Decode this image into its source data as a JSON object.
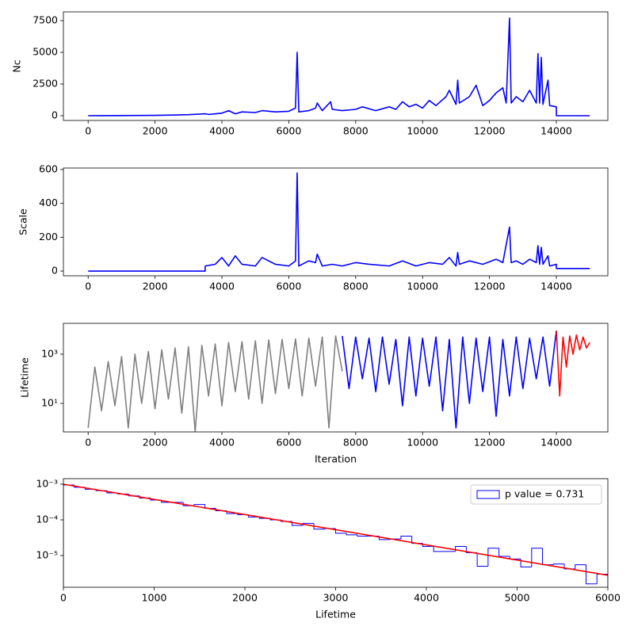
{
  "chart_data": [
    {
      "type": "line",
      "ylabel": "Nc",
      "xlim": [
        -740,
        15540
      ],
      "xticks": [
        0,
        2000,
        4000,
        6000,
        8000,
        10000,
        12000,
        14000
      ],
      "ylim": [
        -375,
        8190
      ],
      "yticks": [
        0,
        2500,
        5000,
        7500
      ],
      "series": [
        {
          "color": "#0000ff",
          "x": [
            0,
            500,
            1000,
            1500,
            2000,
            2500,
            3000,
            3500,
            3600,
            4000,
            4200,
            4400,
            4600,
            5000,
            5200,
            5600,
            6000,
            6200,
            6250,
            6300,
            6600,
            6800,
            6850,
            7000,
            7250,
            7300,
            7600,
            8000,
            8200,
            8600,
            9000,
            9200,
            9400,
            9600,
            9800,
            10000,
            10200,
            10400,
            10700,
            10800,
            11000,
            11050,
            11100,
            11400,
            11600,
            11800,
            12000,
            12200,
            12400,
            12500,
            12600,
            12650,
            12800,
            13000,
            13200,
            13400,
            13450,
            13500,
            13550,
            13600,
            13750,
            13800,
            14000,
            14001,
            15000
          ],
          "values": [
            0,
            5,
            10,
            20,
            30,
            50,
            80,
            150,
            100,
            200,
            400,
            150,
            300,
            250,
            400,
            300,
            350,
            600,
            5000,
            300,
            400,
            600,
            1000,
            400,
            1100,
            500,
            400,
            500,
            700,
            400,
            700,
            500,
            1100,
            700,
            900,
            600,
            1200,
            800,
            1500,
            2000,
            900,
            2800,
            1000,
            1500,
            2400,
            800,
            1200,
            1800,
            2200,
            1000,
            7700,
            1000,
            1500,
            1100,
            2000,
            1000,
            4900,
            1000,
            4600,
            900,
            2800,
            800,
            700,
            0,
            0
          ]
        }
      ]
    },
    {
      "type": "line",
      "ylabel": "Scale",
      "xlim": [
        -740,
        15540
      ],
      "xticks": [
        0,
        2000,
        4000,
        6000,
        8000,
        10000,
        12000,
        14000
      ],
      "ylim": [
        -28,
        609
      ],
      "yticks": [
        0,
        200,
        400,
        600
      ],
      "series": [
        {
          "color": "#0000ff",
          "x": [
            0,
            3500,
            3501,
            3800,
            4000,
            4200,
            4400,
            4600,
            5000,
            5200,
            5600,
            6000,
            6200,
            6250,
            6300,
            6600,
            6800,
            6850,
            7000,
            7300,
            7600,
            8000,
            8400,
            9000,
            9400,
            9800,
            10200,
            10600,
            10800,
            11000,
            11050,
            11100,
            11400,
            11800,
            12200,
            12400,
            12600,
            12650,
            12800,
            13000,
            13200,
            13400,
            13450,
            13500,
            13550,
            13600,
            13750,
            13800,
            14000,
            14001,
            15000
          ],
          "values": [
            0,
            0,
            30,
            40,
            80,
            30,
            90,
            40,
            30,
            80,
            40,
            30,
            60,
            580,
            30,
            60,
            50,
            100,
            30,
            40,
            30,
            50,
            40,
            30,
            60,
            30,
            50,
            40,
            80,
            30,
            110,
            40,
            60,
            40,
            70,
            50,
            260,
            50,
            60,
            40,
            70,
            50,
            150,
            40,
            140,
            40,
            90,
            30,
            40,
            15,
            15
          ]
        }
      ]
    },
    {
      "type": "line",
      "ylabel": "Lifetime",
      "xlabel": "Iteration",
      "ylog": true,
      "xlim": [
        -740,
        15540
      ],
      "xticks": [
        0,
        2000,
        4000,
        6000,
        8000,
        10000,
        12000,
        14000
      ],
      "ylim": [
        0.69,
        18000
      ],
      "yticks": [
        {
          "value": 10,
          "label": "10¹"
        },
        {
          "value": 1000,
          "label": "10³"
        }
      ],
      "series": [
        {
          "color": "#808080",
          "x": [
            0,
            200,
            400,
            600,
            800,
            1000,
            1200,
            1400,
            1600,
            1800,
            2000,
            2200,
            2400,
            2600,
            2800,
            3000,
            3200,
            3400,
            3600,
            3800,
            4000,
            4200,
            4400,
            4600,
            4800,
            5000,
            5200,
            5400,
            5600,
            5800,
            6000,
            6200,
            6400,
            6600,
            6800,
            7000,
            7200,
            7400,
            7600
          ],
          "values": [
            1,
            300,
            5,
            500,
            8,
            800,
            1,
            1000,
            10,
            1300,
            6,
            1500,
            15,
            1800,
            4,
            2000,
            0.7,
            2300,
            20,
            2600,
            8,
            3000,
            30,
            3200,
            15,
            3500,
            10,
            3800,
            25,
            4000,
            40,
            4200,
            20,
            4500,
            50,
            5000,
            1,
            5500,
            200
          ]
        },
        {
          "color": "#0000ff",
          "x": [
            7600,
            7800,
            8000,
            8200,
            8400,
            8600,
            8800,
            9000,
            9200,
            9400,
            9600,
            9800,
            10000,
            10200,
            10400,
            10600,
            10800,
            11000,
            11200,
            11400,
            11600,
            11800,
            12000,
            12200,
            12400,
            12600,
            12800,
            13000,
            13200,
            13400,
            13600,
            13800,
            14000
          ],
          "values": [
            5500,
            40,
            5000,
            100,
            4500,
            30,
            5000,
            60,
            4000,
            8,
            5000,
            20,
            4500,
            50,
            5000,
            5,
            4000,
            1,
            5000,
            10,
            4500,
            30,
            5000,
            3,
            4000,
            20,
            5000,
            40,
            4500,
            100,
            5000,
            50,
            9000
          ]
        },
        {
          "color": "#ff0000",
          "x": [
            14000,
            14100,
            14200,
            14300,
            14400,
            14500,
            14600,
            14700,
            14800,
            14900,
            15000
          ],
          "values": [
            9000,
            20,
            5000,
            300,
            5500,
            1000,
            6000,
            1500,
            5000,
            1800,
            3000
          ]
        }
      ]
    },
    {
      "type": "histogram",
      "xlabel": "Lifetime",
      "ylog": true,
      "legend": "upper right",
      "xlim": [
        0,
        6000
      ],
      "xticks": [
        0,
        1000,
        2000,
        3000,
        4000,
        5000,
        6000
      ],
      "ylim": [
        1.29e-06,
        0.00143
      ],
      "yticks": [
        {
          "value": 1e-05,
          "label": "10⁻⁵"
        },
        {
          "value": 0.0001,
          "label": "10⁻⁴"
        },
        {
          "value": 0.001,
          "label": "10⁻³"
        }
      ],
      "bins": [
        0,
        120,
        240,
        360,
        480,
        600,
        720,
        840,
        960,
        1080,
        1200,
        1320,
        1440,
        1560,
        1680,
        1800,
        1920,
        2040,
        2160,
        2280,
        2400,
        2520,
        2640,
        2760,
        2880,
        3000,
        3120,
        3240,
        3360,
        3480,
        3600,
        3720,
        3840,
        3960,
        4080,
        4200,
        4320,
        4440,
        4560,
        4680,
        4800,
        4920,
        5040,
        5160,
        5280,
        5400,
        5520,
        5640,
        5760,
        5880,
        6000
      ],
      "series": [
        {
          "name": "p value = 0.731",
          "color": "#0000ff",
          "values": [
            0.00095,
            0.00082,
            0.00072,
            0.00066,
            0.00057,
            0.00053,
            0.00047,
            0.00041,
            0.00036,
            0.00031,
            0.00031,
            0.00025,
            0.00027,
            0.00021,
            0.00018,
            0.00015,
            0.00014,
            0.00012,
            0.00011,
            0.0001,
            9e-05,
            7e-05,
            8e-05,
            5.5e-05,
            5.7e-05,
            4.2e-05,
            3.8e-05,
            3.5e-05,
            3.5e-05,
            2.8e-05,
            2.9e-05,
            3.5e-05,
            2.2e-05,
            1.8e-05,
            1.3e-05,
            1.3e-05,
            1.8e-05,
            1.2e-05,
            5e-06,
            1.6e-05,
            9.5e-06,
            8e-06,
            4.8e-06,
            1.6e-05,
            5.5e-06,
            5.8e-06,
            4.2e-06,
            5.5e-06,
            1.6e-06,
            3e-06
          ]
        }
      ],
      "fit_line": {
        "color": "#ff0000",
        "x": [
          0,
          6000
        ],
        "values": [
          0.001,
          2.8e-06
        ]
      }
    }
  ]
}
